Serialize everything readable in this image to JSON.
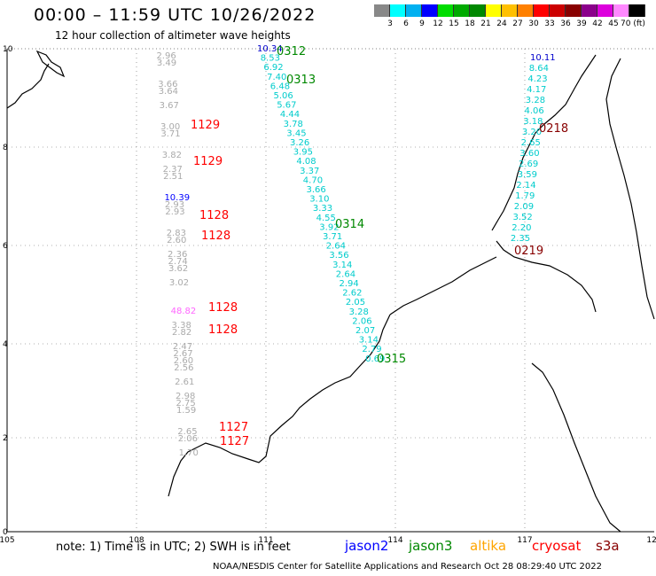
{
  "title": "00:00 – 11:59 UTC 10/26/2022",
  "subtitle": "12 hour collection of altimeter wave heights",
  "colorbar": {
    "colors": [
      "#888888",
      "#00ffff",
      "#00b0f0",
      "#0000ff",
      "#00dd00",
      "#00aa00",
      "#008800",
      "#ffff00",
      "#ffc000",
      "#ff8000",
      "#ff0000",
      "#cc0000",
      "#880000",
      "#8b008b",
      "#dd00dd",
      "#ff88ff",
      "#000000"
    ],
    "labels": [
      "3",
      "6",
      "9",
      "12",
      "15",
      "18",
      "21",
      "24",
      "27",
      "30",
      "33",
      "36",
      "39",
      "42",
      "45",
      "70 (ft)"
    ]
  },
  "axes": {
    "x_ticks": [
      "105",
      "108",
      "111",
      "114",
      "117",
      "120"
    ],
    "y_ticks": [
      "10",
      "8",
      "6",
      "4",
      "2",
      "0"
    ]
  },
  "tracks": [
    {
      "color": "#aaaaaa",
      "v": [
        [
          1,
          "2.96"
        ],
        [
          2,
          "3.49"
        ],
        [
          5,
          "3.66"
        ],
        [
          6,
          "3.64"
        ],
        [
          8,
          "3.67"
        ],
        [
          11,
          "3.00"
        ],
        [
          12,
          "3.71"
        ],
        [
          15,
          "3.82"
        ],
        [
          17,
          "2.37"
        ],
        [
          18,
          "2.51"
        ],
        [
          21,
          "10.39"
        ],
        [
          22,
          "2.93"
        ],
        [
          23,
          "2.93"
        ],
        [
          26,
          "2.83"
        ],
        [
          27,
          "2.60"
        ],
        [
          29,
          "2.36"
        ],
        [
          30,
          "2.74"
        ],
        [
          31,
          "3.62"
        ],
        [
          33,
          "3.02"
        ],
        [
          37,
          "48.82"
        ],
        [
          39,
          "3.38"
        ],
        [
          40,
          "2.82"
        ],
        [
          42,
          "2.47"
        ],
        [
          43,
          "2.67"
        ],
        [
          44,
          "2.60"
        ],
        [
          45,
          "2.56"
        ],
        [
          47,
          "2.61"
        ],
        [
          49,
          "2.98"
        ],
        [
          50,
          "2.75"
        ],
        [
          51,
          "1.59"
        ],
        [
          54,
          "2.65"
        ],
        [
          55,
          "2.06"
        ],
        [
          57,
          "1.70"
        ]
      ]
    },
    {
      "color": "#00cccc",
      "v": [
        [
          0,
          "10.34"
        ],
        [
          1,
          "8.53"
        ],
        [
          2,
          "6.92"
        ],
        [
          3,
          "7.40"
        ],
        [
          4,
          "6.48"
        ],
        [
          5,
          "5.06"
        ],
        [
          6,
          "5.67"
        ],
        [
          7,
          "4.44"
        ],
        [
          8,
          "3.78"
        ],
        [
          9,
          "3.45"
        ],
        [
          10,
          "3.26"
        ],
        [
          11,
          "3.95"
        ],
        [
          12,
          "4.08"
        ],
        [
          13,
          "3.37"
        ],
        [
          14,
          "4.70"
        ],
        [
          15,
          "3.66"
        ],
        [
          16,
          "3.10"
        ],
        [
          17,
          "3.33"
        ],
        [
          18,
          "4.55"
        ],
        [
          19,
          "3.92"
        ],
        [
          20,
          "3.71"
        ],
        [
          21,
          "2.64"
        ],
        [
          22,
          "3.56"
        ],
        [
          23,
          "3.14"
        ],
        [
          24,
          "2.64"
        ],
        [
          25,
          "2.94"
        ],
        [
          26,
          "2.62"
        ],
        [
          27,
          "2.05"
        ],
        [
          28,
          "3.28"
        ],
        [
          29,
          "2.06"
        ],
        [
          30,
          "2.07"
        ],
        [
          31,
          "3.14"
        ],
        [
          32,
          "2.79"
        ],
        [
          33,
          "0.69"
        ]
      ]
    },
    {
      "color": "#00cccc",
      "v": [
        [
          0,
          "10.11"
        ],
        [
          1,
          "8.64"
        ],
        [
          2,
          "4.23"
        ],
        [
          3,
          "4.17"
        ],
        [
          4,
          "3.28"
        ],
        [
          5,
          "4.06"
        ],
        [
          6,
          "3.18"
        ],
        [
          7,
          "3.20"
        ],
        [
          8,
          "2.65"
        ],
        [
          9,
          "3.60"
        ],
        [
          10,
          "2.69"
        ],
        [
          11,
          "3.59"
        ],
        [
          12,
          "2.14"
        ],
        [
          13,
          "1.79"
        ],
        [
          14,
          "2.09"
        ],
        [
          15,
          "3.52"
        ],
        [
          16,
          "2.20"
        ],
        [
          17,
          "2.35"
        ]
      ]
    }
  ],
  "pass_labels": [
    {
      "text": "0312",
      "color": "#008800"
    },
    {
      "text": "0313",
      "color": "#008800"
    },
    {
      "text": "0314",
      "color": "#008800"
    },
    {
      "text": "0315",
      "color": "#008800"
    },
    {
      "text": "1129",
      "color": "#ff0000"
    },
    {
      "text": "1129",
      "color": "#ff0000"
    },
    {
      "text": "1128",
      "color": "#ff0000"
    },
    {
      "text": "1128",
      "color": "#ff0000"
    },
    {
      "text": "1128",
      "color": "#ff0000"
    },
    {
      "text": "1128",
      "color": "#ff0000"
    },
    {
      "text": "1127",
      "color": "#ff0000"
    },
    {
      "text": "1127",
      "color": "#ff0000"
    },
    {
      "text": "0218",
      "color": "#880000"
    },
    {
      "text": "0219",
      "color": "#880000"
    }
  ],
  "footer": {
    "note": "note:  1) Time is in UTC;  2) SWH is in feet",
    "legend": [
      {
        "name": "jason2",
        "color": "#0000ff"
      },
      {
        "name": "jason3",
        "color": "#008800"
      },
      {
        "name": "altika",
        "color": "#ffa500"
      },
      {
        "name": "cryosat",
        "color": "#ff0000"
      },
      {
        "name": "s3a",
        "color": "#880000"
      }
    ],
    "credit": "NOAA/NESDIS Center for Satellite Applications and Research    Oct 28 08:29:40 UTC 2022"
  }
}
